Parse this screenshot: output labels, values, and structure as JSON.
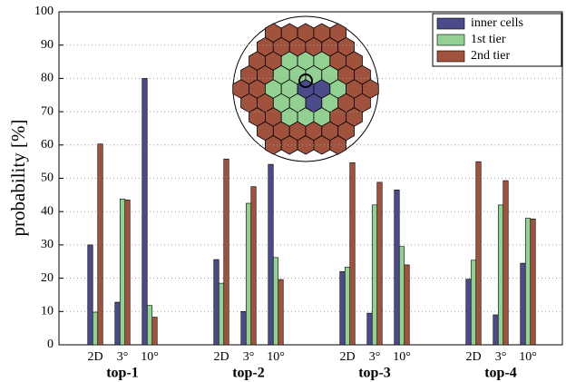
{
  "chart_data": {
    "type": "bar",
    "ylabel": "probability [%]",
    "categories": [
      "2D",
      "3°",
      "10°",
      "2D",
      "3°",
      "10°",
      "2D",
      "3°",
      "10°",
      "2D",
      "3°",
      "10°"
    ],
    "groups": [
      "top-1",
      "top-2",
      "top-3",
      "top-4"
    ],
    "series": [
      {
        "name": "inner cells",
        "color": "#4b4a8a",
        "values": [
          30,
          12.8,
          80,
          25.6,
          10,
          54.2,
          22,
          9.5,
          46.5,
          19.7,
          9,
          24.5
        ]
      },
      {
        "name": "1st tier",
        "color": "#93d193",
        "values": [
          9.8,
          43.8,
          11.8,
          18.5,
          42.5,
          26.2,
          23.3,
          42,
          29.5,
          25.4,
          42,
          38
        ]
      },
      {
        "name": "2nd tier",
        "color": "#a0523d",
        "values": [
          60.3,
          43.5,
          8.3,
          55.8,
          47.5,
          19.6,
          54.7,
          48.8,
          24,
          55,
          49.3,
          37.8
        ]
      }
    ],
    "ylim": [
      0,
      100
    ],
    "yticks": [
      0,
      10,
      20,
      30,
      40,
      50,
      60,
      70,
      80,
      90,
      100
    ],
    "grid": true,
    "legend": "top-right"
  }
}
